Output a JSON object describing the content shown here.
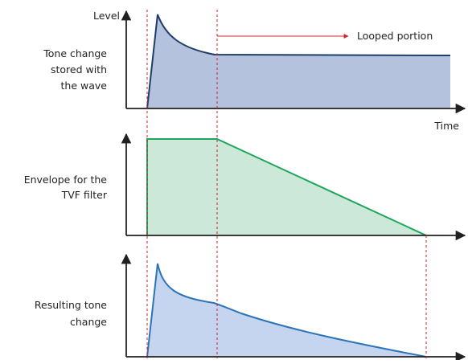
{
  "labels": {
    "level": "Level",
    "time": "Time",
    "looped_portion": "Looped portion",
    "panel1": [
      "Tone change",
      "stored with",
      "the wave"
    ],
    "panel2": [
      "Envelope for the",
      "TVF filter"
    ],
    "panel3": [
      "Resulting tone",
      "change"
    ]
  },
  "colors": {
    "axis": "#231f20",
    "wave_fill": "#b5c2dd",
    "wave_line": "#1f3d6b",
    "envelope_fill": "#cce8d9",
    "envelope_line": "#1ea65b",
    "result_fill": "#c6d5ef",
    "result_line": "#2b74b8",
    "marker": "#d2232a"
  }
}
